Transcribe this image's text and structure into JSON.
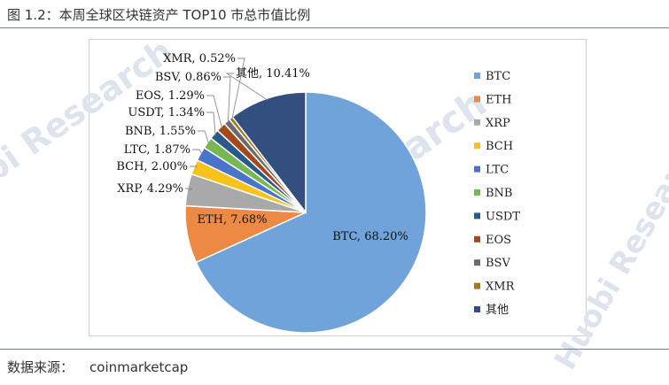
{
  "figure": {
    "title": "图 1.2：本周全球区块链资产 TOP10 市总市值比例",
    "source_label": "数据来源：",
    "source_value": "coinmarketcap",
    "watermark": "Huobi Research"
  },
  "colors": {
    "rule": "#6b7c93",
    "frame": "#d0d0d0"
  },
  "chart_data": {
    "type": "pie",
    "title": "",
    "legend_position": "right",
    "slices": [
      {
        "name": "BTC",
        "value": 68.2,
        "label": "BTC, 68.20%",
        "color": "#6fa3d9"
      },
      {
        "name": "ETH",
        "value": 7.68,
        "label": "ETH, 7.68%",
        "color": "#ec8a45"
      },
      {
        "name": "XRP",
        "value": 4.29,
        "label": "XRP, 4.29%",
        "color": "#a9a9a9"
      },
      {
        "name": "BCH",
        "value": 2.0,
        "label": "BCH, 2.00%",
        "color": "#f7c21c"
      },
      {
        "name": "LTC",
        "value": 1.87,
        "label": "LTC, 1.87%",
        "color": "#4a74c9"
      },
      {
        "name": "BNB",
        "value": 1.55,
        "label": "BNB, 1.55%",
        "color": "#77b852"
      },
      {
        "name": "USDT",
        "value": 1.34,
        "label": "USDT, 1.34%",
        "color": "#2a5a8a"
      },
      {
        "name": "EOS",
        "value": 1.29,
        "label": "EOS, 1.29%",
        "color": "#a34a1c"
      },
      {
        "name": "BSV",
        "value": 0.86,
        "label": "BSV, 0.86%",
        "color": "#6b6b6b"
      },
      {
        "name": "XMR",
        "value": 0.52,
        "label": "XMR, 0.52%",
        "color": "#a07a1e"
      },
      {
        "name": "其他",
        "value": 10.41,
        "label": "其他, 10.41%",
        "color": "#334f80"
      }
    ]
  }
}
